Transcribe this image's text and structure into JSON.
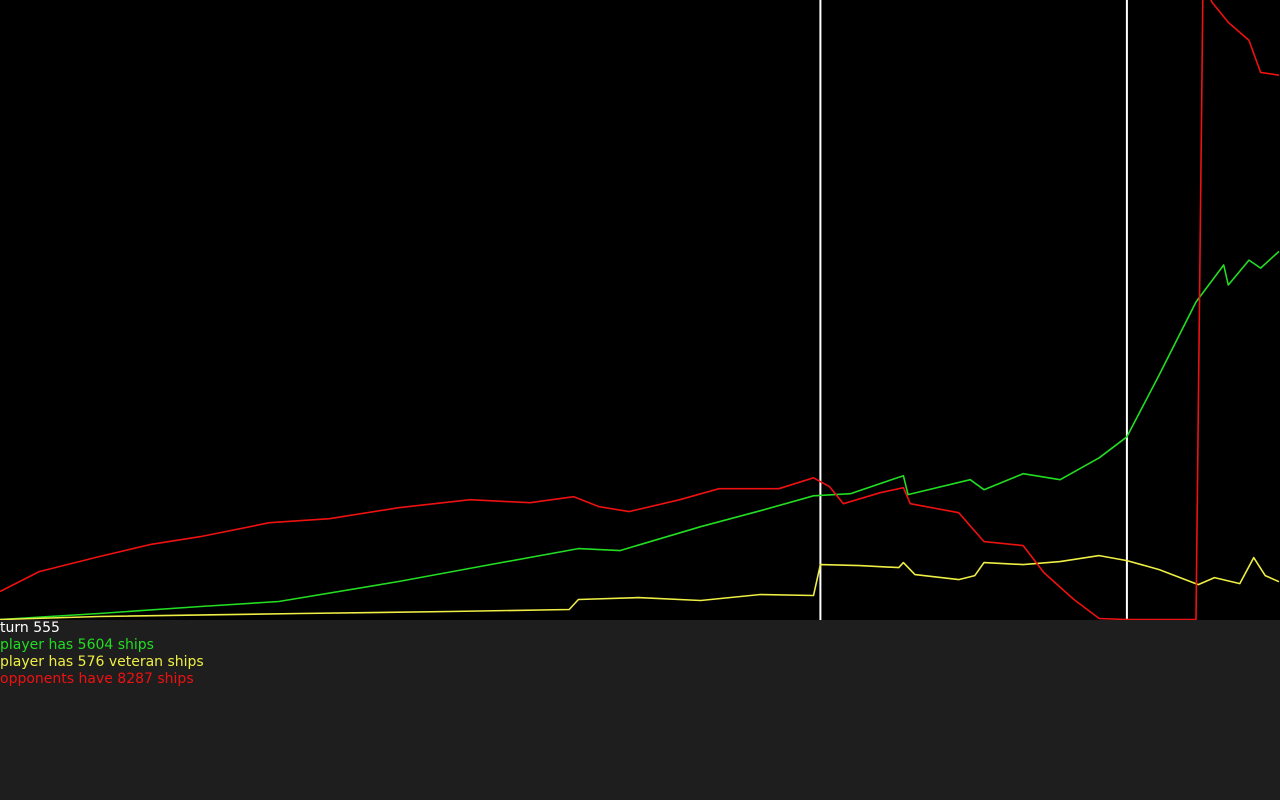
{
  "chart_data": {
    "type": "line",
    "xlim": [
      0,
      555
    ],
    "ylim": [
      0,
      9424
    ],
    "markers": [
      356,
      489
    ],
    "marker_color": "#ffffff",
    "series": [
      {
        "name": "player ships",
        "color": "#22dd22",
        "x": [
          0,
          43,
          87,
          121,
          173,
          208,
          251,
          269,
          304,
          330,
          353,
          369,
          392,
          394,
          421,
          427,
          444,
          460,
          477,
          489,
          503,
          519,
          531,
          533,
          542,
          547,
          555
        ],
        "values": [
          0,
          91,
          198,
          274,
          578,
          806,
          1079,
          1049,
          1413,
          1656,
          1884,
          1915,
          2189,
          1902,
          2128,
          1976,
          2219,
          2128,
          2462,
          2781,
          3724,
          4834,
          5397,
          5093,
          5472,
          5350,
          5604
        ]
      },
      {
        "name": "veteran ships",
        "color": "#eeee44",
        "x": [
          0,
          43,
          130,
          195,
          247,
          251,
          277,
          304,
          330,
          353,
          356,
          373,
          390,
          392,
          397,
          416,
          423,
          427,
          444,
          460,
          477,
          489,
          503,
          520,
          527,
          538,
          544,
          549,
          555
        ],
        "values": [
          0,
          46,
          91,
          122,
          152,
          304,
          334,
          289,
          380,
          365,
          836,
          821,
          790,
          866,
          684,
          608,
          669,
          866,
          836,
          882,
          973,
          897,
          760,
          532,
          638,
          547,
          942,
          669,
          576
        ]
      },
      {
        "name": "opponent ships",
        "color": "#ee1111",
        "x": [
          0,
          17,
          43,
          65,
          87,
          117,
          143,
          173,
          204,
          230,
          249,
          260,
          273,
          295,
          312,
          338,
          353,
          360,
          366,
          382,
          392,
          395,
          416,
          427,
          444,
          453,
          466,
          477,
          489,
          519,
          522,
          526,
          533,
          542,
          547,
          555
        ],
        "values": [
          426,
          730,
          958,
          1140,
          1262,
          1474,
          1535,
          1702,
          1824,
          1778,
          1870,
          1718,
          1642,
          1824,
          1991,
          1991,
          2158,
          2022,
          1763,
          1930,
          2006,
          1763,
          1626,
          1186,
          1125,
          714,
          304,
          15,
          0,
          0,
          9700,
          9394,
          9090,
          8816,
          8330,
          8287
        ]
      }
    ]
  },
  "status": [
    {
      "text": "turn 555",
      "color": "#ffffff"
    },
    {
      "text": "player has 5604 ships",
      "color": "#22dd22"
    },
    {
      "text": "player has 576 veteran ships",
      "color": "#eeee44"
    },
    {
      "text": "opponents have 8287 ships",
      "color": "#ee1111"
    }
  ]
}
